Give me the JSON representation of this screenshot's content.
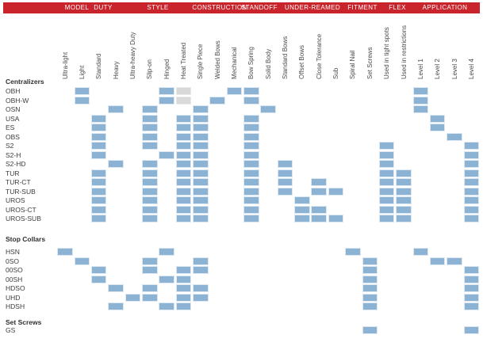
{
  "header": {
    "bar_color": "#c9242b",
    "sections": [
      "MODEL",
      "DUTY",
      "STYLE",
      "CONSTRUCTION",
      "STANDOFF",
      "UNDER-REAMED",
      "FITMENT",
      "FLEX",
      "APPLICATION"
    ]
  },
  "columns": [
    "Ultra-light",
    "Light",
    "Standard",
    "Heavy",
    "Ultra-heavy Duty",
    "Slip-on",
    "Hinged",
    "Heat Treated",
    "Single Piece",
    "Welded Bows",
    "Mechanical",
    "Bow Spring",
    "Solid Body",
    "Standard Bows",
    "Offset Bows",
    "Close Tolerance",
    "Sub",
    "Spiral Nail",
    "Set Screws",
    "Used in tight spots",
    "Used in restrictions",
    "Level 1",
    "Level 2",
    "Level 3",
    "Level 4"
  ],
  "column_sections": {
    "DUTY": [
      0,
      4
    ],
    "STYLE": [
      5,
      7
    ],
    "CONSTRUCTION": [
      8,
      9
    ],
    "STANDOFF": [
      10,
      12
    ],
    "UNDER-REAMED": [
      13,
      16
    ],
    "FITMENT": [
      17,
      18
    ],
    "FLEX": [
      19,
      20
    ],
    "APPLICATION": [
      21,
      24
    ]
  },
  "groups": [
    {
      "name": "Centralizers",
      "rows": [
        {
          "model": "OBH",
          "cells": [
            1,
            6,
            10,
            11,
            21
          ],
          "grey_cells": [
            7
          ]
        },
        {
          "model": "OBH-W",
          "cells": [
            1,
            6,
            9,
            11,
            21
          ],
          "grey_cells": [
            7
          ]
        },
        {
          "model": "OSN",
          "cells": [
            3,
            5,
            8,
            12,
            21
          ]
        },
        {
          "model": "USA",
          "cells": [
            2,
            5,
            7,
            8,
            11,
            22
          ]
        },
        {
          "model": "ES",
          "cells": [
            2,
            5,
            7,
            8,
            11,
            22
          ]
        },
        {
          "model": "OBS",
          "cells": [
            2,
            5,
            7,
            8,
            11,
            23
          ]
        },
        {
          "model": "S2",
          "cells": [
            2,
            5,
            7,
            8,
            11,
            19,
            24
          ]
        },
        {
          "model": "S2-H",
          "cells": [
            2,
            6,
            7,
            8,
            11,
            19,
            24
          ]
        },
        {
          "model": "S2-HD",
          "cells": [
            3,
            5,
            7,
            8,
            11,
            13,
            19,
            24
          ]
        },
        {
          "model": "TUR",
          "cells": [
            2,
            5,
            7,
            8,
            11,
            13,
            19,
            20,
            24
          ]
        },
        {
          "model": "TUR-CT",
          "cells": [
            2,
            5,
            7,
            8,
            11,
            13,
            15,
            19,
            20,
            24
          ]
        },
        {
          "model": "TUR-SUB",
          "cells": [
            2,
            5,
            7,
            8,
            11,
            13,
            15,
            16,
            19,
            20,
            24
          ]
        },
        {
          "model": "UROS",
          "cells": [
            2,
            5,
            7,
            8,
            11,
            14,
            19,
            20,
            24
          ]
        },
        {
          "model": "UROS-CT",
          "cells": [
            2,
            5,
            7,
            8,
            11,
            14,
            15,
            19,
            20,
            24
          ]
        },
        {
          "model": "UROS-SUB",
          "cells": [
            2,
            5,
            7,
            8,
            11,
            14,
            15,
            16,
            19,
            20,
            24
          ]
        }
      ]
    },
    {
      "name": "Stop Collars",
      "rows": [
        {
          "model": "HSN",
          "cells": [
            0,
            6,
            17,
            21
          ]
        },
        {
          "model": "0SO",
          "cells": [
            1,
            5,
            8,
            18,
            22,
            23
          ]
        },
        {
          "model": "00SO",
          "cells": [
            2,
            5,
            7,
            8,
            18,
            24
          ]
        },
        {
          "model": "00SH",
          "cells": [
            2,
            6,
            7,
            18,
            24
          ]
        },
        {
          "model": "HDSO",
          "cells": [
            3,
            5,
            7,
            8,
            18,
            24
          ]
        },
        {
          "model": "UHD",
          "cells": [
            4,
            5,
            7,
            8,
            18,
            24
          ]
        },
        {
          "model": "HDSH",
          "cells": [
            3,
            6,
            7,
            18,
            24
          ]
        }
      ]
    },
    {
      "name": "Set Screws",
      "rows": [
        {
          "model": "GS",
          "cells": [
            18,
            24
          ]
        }
      ]
    }
  ],
  "colors": {
    "cell_blue": "#8cb3d4",
    "cell_grey": "#d9d9d9",
    "header_red": "#c9242b",
    "row_label_text": "#3c3c3c",
    "column_label_text": "#4a4a4a"
  }
}
